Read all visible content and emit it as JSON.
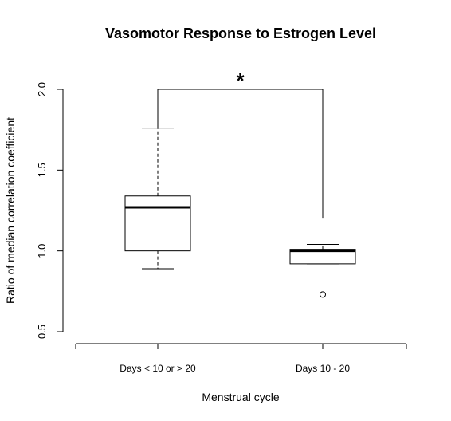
{
  "chart_data": {
    "type": "box",
    "title": "Vasomotor Response to Estrogen Level",
    "xlabel": "Menstrual cycle",
    "ylabel": "Ratio of median correlation coefficient",
    "ylim": [
      0.5,
      2.0
    ],
    "yticks": [
      "0.5",
      "1.0",
      "1.5",
      "2.0"
    ],
    "categories": [
      "Days < 10 or > 20",
      "Days 10 - 20"
    ],
    "boxes": [
      {
        "category": "Days < 10 or > 20",
        "whisker_low": 0.89,
        "q1": 1.0,
        "median": 1.27,
        "q3": 1.34,
        "whisker_high": 1.76,
        "outliers": []
      },
      {
        "category": "Days 10 - 20",
        "whisker_low": 0.92,
        "q1": 0.92,
        "median": 1.0,
        "q3": 1.01,
        "whisker_high": 1.04,
        "outliers": [
          0.73
        ]
      }
    ],
    "significance": {
      "label": "*",
      "between": [
        "Days < 10 or > 20",
        "Days 10 - 20"
      ],
      "bracket_y": 2.0,
      "left_drop_to": 1.76,
      "right_drop_to": 1.2
    },
    "grid": false,
    "legend": "none"
  }
}
